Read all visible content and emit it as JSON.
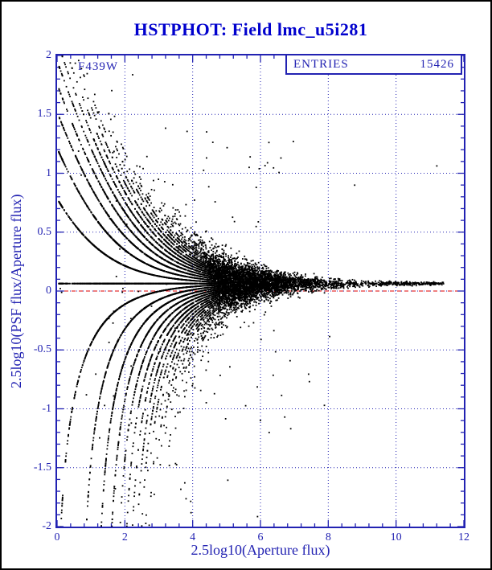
{
  "title": "HSTPHOT: Field lmc_u5i281",
  "stats": {
    "label": "ENTRIES",
    "value": "15426"
  },
  "colors": {
    "axis_blue": "#2222b2",
    "title_blue": "#0000cd",
    "point_black": "#000000",
    "zero_line_red": "#e00000",
    "background": "#ffffff",
    "outer_border": "#000000"
  },
  "chart_data": {
    "type": "scatter",
    "title": "HSTPHOT: Field lmc_u5i281",
    "annotation": "F439W",
    "entries": 15426,
    "xlabel": "2.5log10(Aperture flux)",
    "ylabel": "2.5log10(PSF flux/Aperture flux)",
    "xlim": [
      0,
      12
    ],
    "ylim": [
      -2,
      2
    ],
    "xticks": [
      0,
      2,
      4,
      6,
      8,
      10,
      12
    ],
    "xtick_labels": [
      "0",
      "2",
      "4",
      "6",
      "8",
      "10",
      "12"
    ],
    "yticks": [
      2,
      1.5,
      1,
      0.5,
      0,
      -0.5,
      -1,
      -1.5,
      -2
    ],
    "ytick_labels": [
      "2",
      "1.5",
      "1",
      "0.5",
      "0",
      "-0.5",
      "-1",
      "-1.5",
      "-2"
    ],
    "grid": true,
    "grid_style": "dotted",
    "x_minor_step": 0.4,
    "y_minor_step": 0.1,
    "zero_line": {
      "y": 0,
      "style": "dashed",
      "color": "#e00000"
    },
    "legend_position": "none",
    "point_distribution": {
      "seed": 20250101,
      "n_points": 15426,
      "model": "y = 2.5*log10(psf/ap); ap = 10^(x/2.5); psf = gain_bias*ap + round(N(0, noise_sqrt_coeff*sqrt(ap) + background_noise)); funnel converging to y ~ +0.06 at high flux with quantized fan curves at low flux",
      "x_mixture": [
        {
          "type": "normal",
          "weight": 0.74,
          "mean": 4.2,
          "sigma": 1.5
        },
        {
          "type": "normal",
          "weight": 0.22,
          "mean": 1.6,
          "sigma": 0.9
        },
        {
          "type": "uniform",
          "weight": 0.04,
          "min": 6.0,
          "max": 11.4
        }
      ],
      "gain_bias": 1.06,
      "noise_sqrt_coeff": 0.9,
      "background_noise": 2.2,
      "low_outlier_frac": 0.005,
      "high_outlier_frac": 0.004
    }
  }
}
